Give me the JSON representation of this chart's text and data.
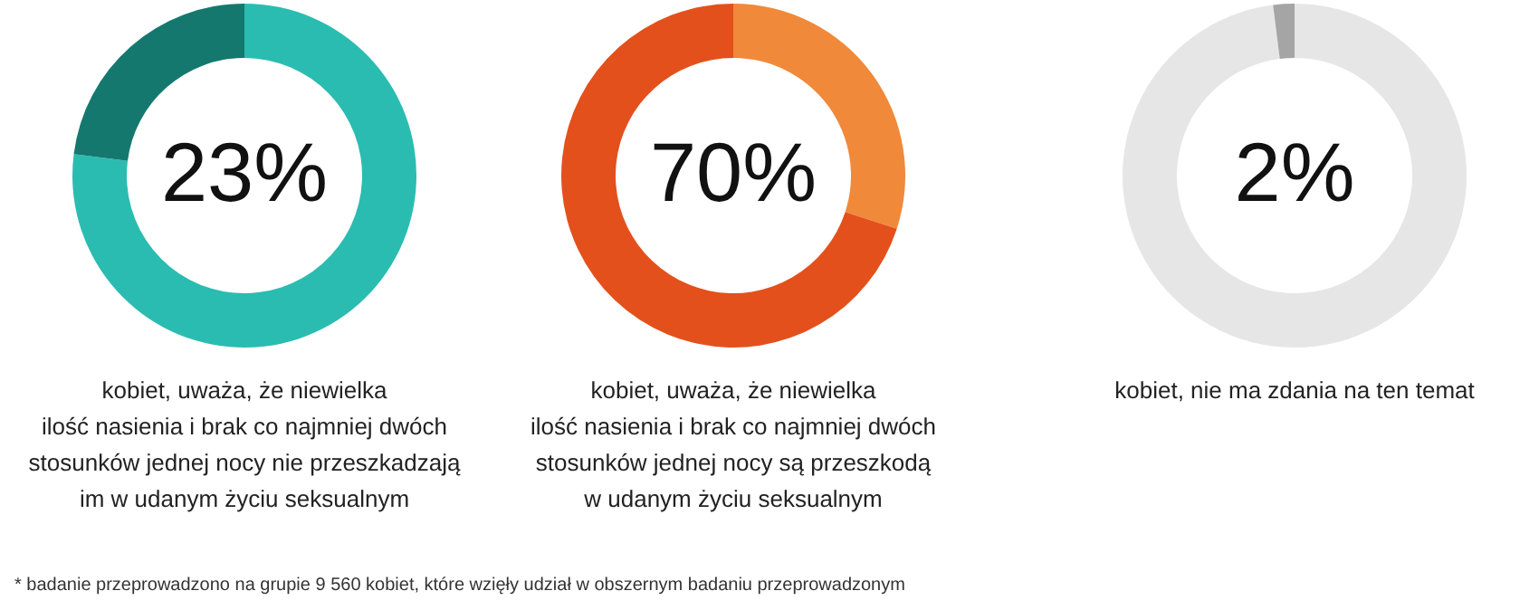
{
  "chart_data": [
    {
      "type": "donut",
      "categories": [
        null,
        null
      ],
      "values": [
        77,
        23
      ],
      "colors": [
        "#2bbcb1",
        "#15786f"
      ],
      "value_labels": [
        null,
        "23%"
      ],
      "subtitle": "kobiet, uważa, że niewielka\nilość nasienia i brak co najmniej dwóch\nstosunków jednej nocy nie przeszkadzają\nim w udanym życiu seksualnym"
    },
    {
      "type": "donut",
      "categories": [
        null,
        null
      ],
      "values": [
        30,
        70
      ],
      "colors": [
        "#f0893a",
        "#e4501c"
      ],
      "value_labels": [
        null,
        "70%"
      ],
      "subtitle": "kobiet, uważa, że niewielka\nilość nasienia i brak co najmniej dwóch\nstosunków jednej nocy są przeszkodą\nw udanym życiu seksualnym",
      "annotations": [
        "* badanie przeprowadzono na grupie 9 560 kobiet, które wzięły udział w obszernym badaniu przeprowadzonym"
      ]
    },
    {
      "type": "donut",
      "categories": [
        null,
        null
      ],
      "values": [
        98,
        2
      ],
      "colors": [
        "#e6e6e6",
        "#a5a5a5"
      ],
      "value_labels": [
        null,
        "2%"
      ],
      "subtitle": "kobiet, nie ma zdania na ten temat"
    }
  ]
}
